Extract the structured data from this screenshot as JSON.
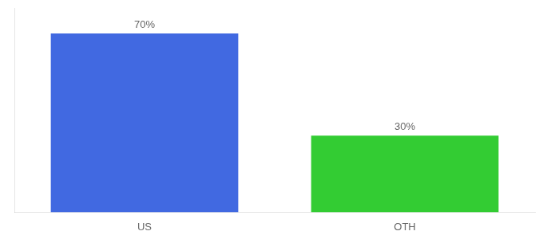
{
  "chart_data": {
    "type": "bar",
    "categories": [
      "US",
      "OTH"
    ],
    "values": [
      70,
      30
    ],
    "value_labels": [
      "70%",
      "30%"
    ],
    "colors": [
      "#4169E1",
      "#33CC33"
    ],
    "ylim": [
      0,
      80
    ],
    "grid": false,
    "data_labels": true,
    "tick_labels": "x"
  }
}
